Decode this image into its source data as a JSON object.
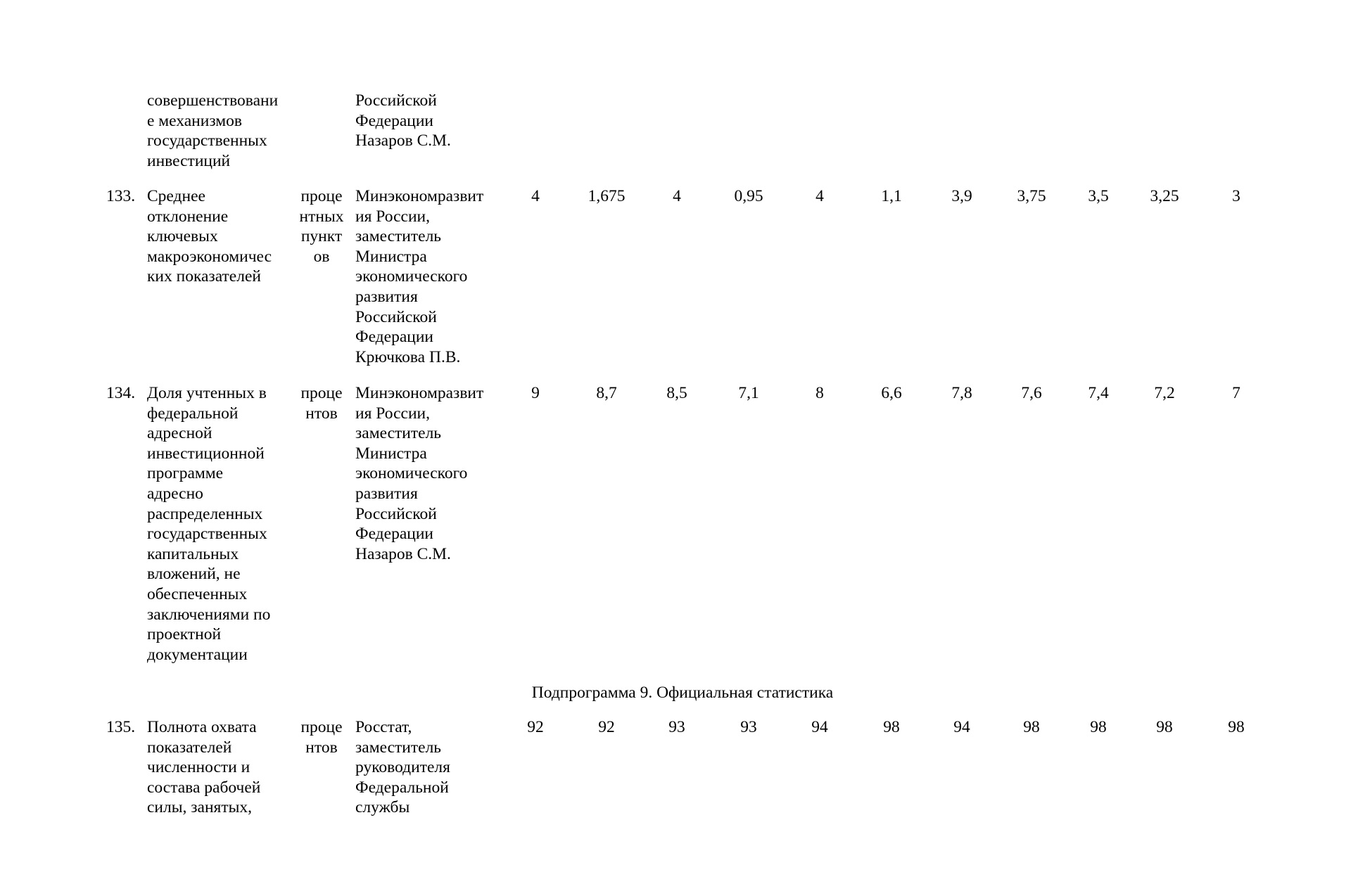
{
  "rows": [
    {
      "number": "",
      "name": "совершенствовани\nе механизмов\nгосударственных\nинвестиций",
      "unit": "",
      "responsible": "Российской\nФедерации\nНазаров С.М.",
      "values": []
    },
    {
      "number": "133.",
      "name": "Среднее\nотклонение\nключевых\nмакроэкономичес\nких показателей",
      "unit": "проце\nнтных\nпункт\nов",
      "responsible": "Минэкономразвит\nия России,\nзаместитель\nМинистра\nэкономического\nразвития\nРоссийской\nФедерации\nКрючкова П.В.",
      "values": [
        "4",
        "1,675",
        "4",
        "0,95",
        "4",
        "1,1",
        "3,9",
        "3,75",
        "3,5",
        "3,25",
        "3"
      ]
    },
    {
      "number": "134.",
      "name": "Доля учтенных в\nфедеральной\nадресной\nинвестиционной\nпрограмме\nадресно\nраспределенных\nгосударственных\nкапитальных\nвложений, не\nобеспеченных\nзаключениями по\nпроектной\nдокументации",
      "unit": "проце\nнтов",
      "responsible": "Минэкономразвит\nия России,\nзаместитель\nМинистра\nэкономического\nразвития\nРоссийской\nФедерации\nНазаров С.М.",
      "values": [
        "9",
        "8,7",
        "8,5",
        "7,1",
        "8",
        "6,6",
        "7,8",
        "7,6",
        "7,4",
        "7,2",
        "7"
      ]
    },
    {
      "number": "135.",
      "name": "Полнота охвата\nпоказателей\nчисленности и\nсостава рабочей\nсилы, занятых,",
      "unit": "проце\nнтов",
      "responsible": "Росстат,\nзаместитель\nруководителя\nФедеральной\nслужбы",
      "values": [
        "92",
        "92",
        "93",
        "93",
        "94",
        "98",
        "94",
        "98",
        "98",
        "98",
        "98"
      ]
    }
  ],
  "subprogram_heading": "Подпрограмма 9. Официальная статистика"
}
